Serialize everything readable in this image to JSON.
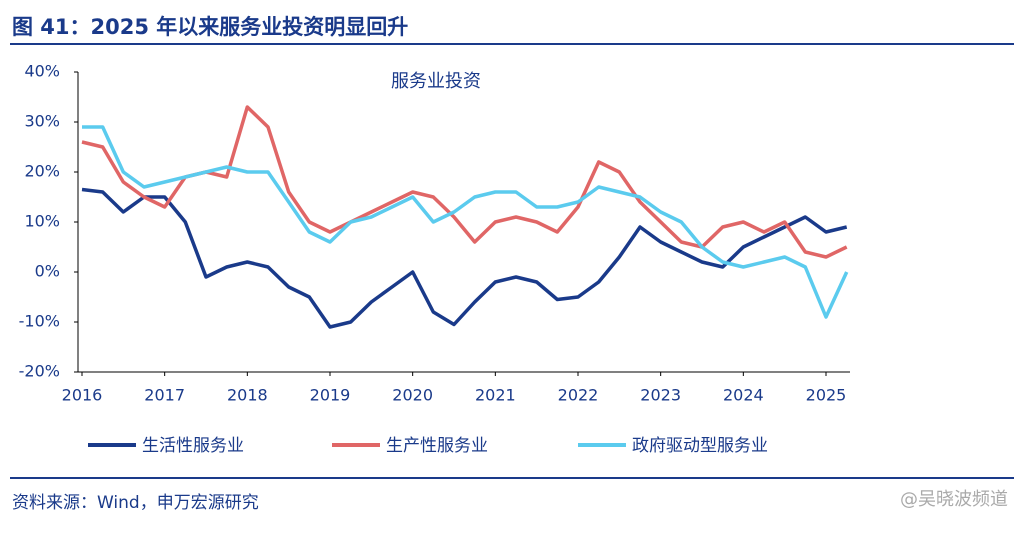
{
  "header": {
    "title": "图 41：2025 年以来服务业投资明显回升"
  },
  "chart_data": {
    "type": "line",
    "title": "服务业投资",
    "x": [
      2016,
      2016.25,
      2016.5,
      2016.75,
      2017,
      2017.25,
      2017.5,
      2017.75,
      2018,
      2018.25,
      2018.5,
      2018.75,
      2019,
      2019.25,
      2019.5,
      2019.75,
      2020,
      2020.25,
      2020.5,
      2020.75,
      2021,
      2021.25,
      2021.5,
      2021.75,
      2022,
      2022.25,
      2022.5,
      2022.75,
      2023,
      2023.25,
      2023.5,
      2023.75,
      2024,
      2024.25,
      2024.5,
      2024.75,
      2025,
      2025.25
    ],
    "series": [
      {
        "name": "生活性服务业",
        "color": "#1a3a8a",
        "values": [
          16.5,
          16,
          12,
          15,
          15,
          10,
          -1,
          1,
          2,
          1,
          -3,
          -5,
          -11,
          -10,
          -6,
          -3,
          0,
          -8,
          -10.5,
          -6,
          -2,
          -1,
          -2,
          -5.5,
          -5,
          -2,
          3,
          9,
          6,
          4,
          2,
          1,
          5,
          7,
          9,
          11,
          8,
          9
        ]
      },
      {
        "name": "生产性服务业",
        "color": "#e06666",
        "values": [
          26,
          25,
          18,
          15,
          13,
          19,
          20,
          19,
          33,
          29,
          16,
          10,
          8,
          10,
          12,
          14,
          16,
          15,
          11,
          6,
          10,
          11,
          10,
          8,
          13,
          22,
          20,
          14,
          10,
          6,
          5,
          9,
          10,
          8,
          10,
          4,
          3,
          5
        ]
      },
      {
        "name": "政府驱动型服务业",
        "color": "#5bcbee",
        "values": [
          29,
          29,
          20,
          17,
          18,
          19,
          20,
          21,
          20,
          20,
          14,
          8,
          6,
          10,
          11,
          13,
          15,
          10,
          12,
          15,
          16,
          16,
          13,
          13,
          14,
          17,
          16,
          15,
          12,
          10,
          5,
          2,
          1,
          2,
          3,
          1,
          -9,
          0
        ]
      }
    ],
    "xlim": [
      2016,
      2025
    ],
    "xticks": [
      2016,
      2017,
      2018,
      2019,
      2020,
      2021,
      2022,
      2023,
      2024,
      2025
    ],
    "ylim": [
      -20,
      40
    ],
    "yticks": [
      {
        "value": -20,
        "label": "-20%"
      },
      {
        "value": -10,
        "label": "-10%"
      },
      {
        "value": 0,
        "label": "0%"
      },
      {
        "value": 10,
        "label": "10%"
      },
      {
        "value": 20,
        "label": "20%"
      },
      {
        "value": 30,
        "label": "30%"
      },
      {
        "value": 40,
        "label": "40%"
      }
    ]
  },
  "footer": {
    "source": "资料来源：Wind，申万宏源研究",
    "watermark": "@吴晓波频道"
  }
}
